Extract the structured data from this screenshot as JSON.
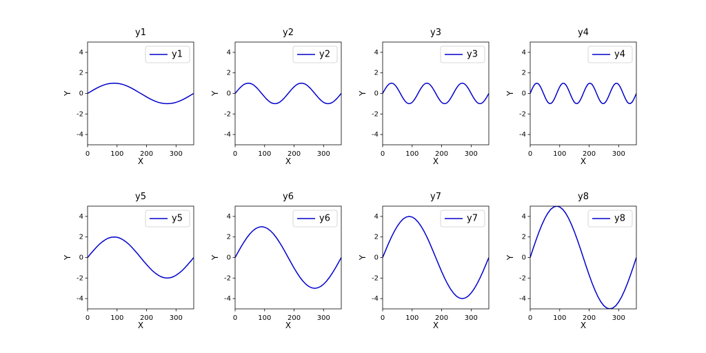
{
  "chart_data": [
    {
      "type": "line",
      "title": "y1",
      "xlabel": "X",
      "ylabel": "Y",
      "xlim": [
        0,
        360
      ],
      "ylim": [
        -5,
        5
      ],
      "xticks": [
        0,
        100,
        200,
        300
      ],
      "yticks": [
        -4,
        -2,
        0,
        2,
        4
      ],
      "legend": "upper right",
      "x": [
        0,
        10,
        20,
        30,
        40,
        50,
        60,
        70,
        80,
        90,
        100,
        110,
        120,
        130,
        140,
        150,
        160,
        170,
        180,
        190,
        200,
        210,
        220,
        230,
        240,
        250,
        260,
        270,
        280,
        290,
        300,
        310,
        320,
        330,
        340,
        350,
        360
      ],
      "series": [
        {
          "name": "y1",
          "color": "#0000cc",
          "values": [
            0,
            0.17,
            0.34,
            0.5,
            0.64,
            0.77,
            0.87,
            0.94,
            0.98,
            1,
            0.98,
            0.94,
            0.87,
            0.77,
            0.64,
            0.5,
            0.34,
            0.17,
            0,
            -0.17,
            -0.34,
            -0.5,
            -0.64,
            -0.77,
            -0.87,
            -0.94,
            -0.98,
            -1,
            -0.98,
            -0.94,
            -0.87,
            -0.77,
            -0.64,
            -0.5,
            -0.34,
            -0.17,
            0
          ]
        }
      ]
    },
    {
      "type": "line",
      "title": "y2",
      "xlabel": "X",
      "ylabel": "Y",
      "xlim": [
        0,
        360
      ],
      "ylim": [
        -5,
        5
      ],
      "xticks": [
        0,
        100,
        200,
        300
      ],
      "yticks": [
        -4,
        -2,
        0,
        2,
        4
      ],
      "legend": "upper right",
      "x": [
        0,
        5,
        10,
        15,
        20,
        25,
        30,
        35,
        40,
        45,
        50,
        55,
        60,
        65,
        70,
        75,
        80,
        85,
        90,
        95,
        100,
        105,
        110,
        115,
        120,
        125,
        130,
        135,
        140,
        145,
        150,
        155,
        160,
        165,
        170,
        175,
        180,
        185,
        190,
        195,
        200,
        205,
        210,
        215,
        220,
        225,
        230,
        235,
        240,
        245,
        250,
        255,
        260,
        265,
        270,
        275,
        280,
        285,
        290,
        295,
        300,
        305,
        310,
        315,
        320,
        325,
        330,
        335,
        340,
        345,
        350,
        355,
        360
      ],
      "series": [
        {
          "name": "y2",
          "color": "#0000cc",
          "values": [
            0,
            0.17,
            0.34,
            0.5,
            0.64,
            0.77,
            0.87,
            0.94,
            0.98,
            1,
            0.98,
            0.94,
            0.87,
            0.77,
            0.64,
            0.5,
            0.34,
            0.17,
            0,
            -0.17,
            -0.34,
            -0.5,
            -0.64,
            -0.77,
            -0.87,
            -0.94,
            -0.98,
            -1,
            -0.98,
            -0.94,
            -0.87,
            -0.77,
            -0.64,
            -0.5,
            -0.34,
            -0.17,
            0,
            0.17,
            0.34,
            0.5,
            0.64,
            0.77,
            0.87,
            0.94,
            0.98,
            1,
            0.98,
            0.94,
            0.87,
            0.77,
            0.64,
            0.5,
            0.34,
            0.17,
            0,
            -0.17,
            -0.34,
            -0.5,
            -0.64,
            -0.77,
            -0.87,
            -0.94,
            -0.98,
            -1,
            -0.98,
            -0.94,
            -0.87,
            -0.77,
            -0.64,
            -0.5,
            -0.34,
            -0.17,
            0
          ]
        }
      ]
    },
    {
      "type": "line",
      "title": "y3",
      "xlabel": "X",
      "ylabel": "Y",
      "xlim": [
        0,
        360
      ],
      "ylim": [
        -5,
        5
      ],
      "xticks": [
        0,
        100,
        200,
        300
      ],
      "yticks": [
        -4,
        -2,
        0,
        2,
        4
      ],
      "legend": "upper right",
      "x": [
        0,
        5,
        10,
        15,
        20,
        25,
        30,
        35,
        40,
        45,
        50,
        55,
        60,
        65,
        70,
        75,
        80,
        85,
        90,
        95,
        100,
        105,
        110,
        115,
        120,
        125,
        130,
        135,
        140,
        145,
        150,
        155,
        160,
        165,
        170,
        175,
        180,
        185,
        190,
        195,
        200,
        205,
        210,
        215,
        220,
        225,
        230,
        235,
        240,
        245,
        250,
        255,
        260,
        265,
        270,
        275,
        280,
        285,
        290,
        295,
        300,
        305,
        310,
        315,
        320,
        325,
        330,
        335,
        340,
        345,
        350,
        355,
        360
      ],
      "series": [
        {
          "name": "y3",
          "color": "#0000cc",
          "values": [
            0,
            0.26,
            0.5,
            0.71,
            0.87,
            0.97,
            1,
            0.97,
            0.87,
            0.71,
            0.5,
            0.26,
            0,
            -0.26,
            -0.5,
            -0.71,
            -0.87,
            -0.97,
            -1,
            -0.97,
            -0.87,
            -0.71,
            -0.5,
            -0.26,
            0,
            0.26,
            0.5,
            0.71,
            0.87,
            0.97,
            1,
            0.97,
            0.87,
            0.71,
            0.5,
            0.26,
            0,
            -0.26,
            -0.5,
            -0.71,
            -0.87,
            -0.97,
            -1,
            -0.97,
            -0.87,
            -0.71,
            -0.5,
            -0.26,
            0,
            0.26,
            0.5,
            0.71,
            0.87,
            0.97,
            1,
            0.97,
            0.87,
            0.71,
            0.5,
            0.26,
            0,
            -0.26,
            -0.5,
            -0.71,
            -0.87,
            -0.97,
            -1,
            -0.97,
            -0.87,
            -0.71,
            -0.5,
            -0.26,
            0
          ]
        }
      ]
    },
    {
      "type": "line",
      "title": "y4",
      "xlabel": "X",
      "ylabel": "Y",
      "xlim": [
        0,
        360
      ],
      "ylim": [
        -5,
        5
      ],
      "xticks": [
        0,
        100,
        200,
        300
      ],
      "yticks": [
        -4,
        -2,
        0,
        2,
        4
      ],
      "legend": "upper right",
      "x": [
        0,
        5,
        10,
        15,
        20,
        25,
        30,
        35,
        40,
        45,
        50,
        55,
        60,
        65,
        70,
        75,
        80,
        85,
        90,
        95,
        100,
        105,
        110,
        115,
        120,
        125,
        130,
        135,
        140,
        145,
        150,
        155,
        160,
        165,
        170,
        175,
        180,
        185,
        190,
        195,
        200,
        205,
        210,
        215,
        220,
        225,
        230,
        235,
        240,
        245,
        250,
        255,
        260,
        265,
        270,
        275,
        280,
        285,
        290,
        295,
        300,
        305,
        310,
        315,
        320,
        325,
        330,
        335,
        340,
        345,
        350,
        355,
        360
      ],
      "series": [
        {
          "name": "y4",
          "color": "#0000cc",
          "values": [
            0,
            0.34,
            0.64,
            0.87,
            0.98,
            0.98,
            0.87,
            0.64,
            0.34,
            0,
            -0.34,
            -0.64,
            -0.87,
            -0.98,
            -0.98,
            -0.87,
            -0.64,
            -0.34,
            0,
            0.34,
            0.64,
            0.87,
            0.98,
            0.98,
            0.87,
            0.64,
            0.34,
            0,
            -0.34,
            -0.64,
            -0.87,
            -0.98,
            -0.98,
            -0.87,
            -0.64,
            -0.34,
            0,
            0.34,
            0.64,
            0.87,
            0.98,
            0.98,
            0.87,
            0.64,
            0.34,
            0,
            -0.34,
            -0.64,
            -0.87,
            -0.98,
            -0.98,
            -0.87,
            -0.64,
            -0.34,
            0,
            0.34,
            0.64,
            0.87,
            0.98,
            0.98,
            0.87,
            0.64,
            0.34,
            0,
            -0.34,
            -0.64,
            -0.87,
            -0.98,
            -0.98,
            -0.87,
            -0.64,
            -0.34,
            0
          ]
        }
      ]
    },
    {
      "type": "line",
      "title": "y5",
      "xlabel": "X",
      "ylabel": "Y",
      "xlim": [
        0,
        360
      ],
      "ylim": [
        -5,
        5
      ],
      "xticks": [
        0,
        100,
        200,
        300
      ],
      "yticks": [
        -4,
        -2,
        0,
        2,
        4
      ],
      "legend": "upper right",
      "x": [
        0,
        10,
        20,
        30,
        40,
        50,
        60,
        70,
        80,
        90,
        100,
        110,
        120,
        130,
        140,
        150,
        160,
        170,
        180,
        190,
        200,
        210,
        220,
        230,
        240,
        250,
        260,
        270,
        280,
        290,
        300,
        310,
        320,
        330,
        340,
        350,
        360
      ],
      "series": [
        {
          "name": "y5",
          "color": "#0000cc",
          "values": [
            0,
            0.35,
            0.68,
            1,
            1.29,
            1.53,
            1.73,
            1.88,
            1.97,
            2,
            1.97,
            1.88,
            1.73,
            1.53,
            1.29,
            1,
            0.68,
            0.35,
            0,
            -0.35,
            -0.68,
            -1,
            -1.29,
            -1.53,
            -1.73,
            -1.88,
            -1.97,
            -2,
            -1.97,
            -1.88,
            -1.73,
            -1.53,
            -1.29,
            -1,
            -0.68,
            -0.35,
            0
          ]
        }
      ]
    },
    {
      "type": "line",
      "title": "y6",
      "xlabel": "X",
      "ylabel": "Y",
      "xlim": [
        0,
        360
      ],
      "ylim": [
        -5,
        5
      ],
      "xticks": [
        0,
        100,
        200,
        300
      ],
      "yticks": [
        -4,
        -2,
        0,
        2,
        4
      ],
      "legend": "upper right",
      "x": [
        0,
        10,
        20,
        30,
        40,
        50,
        60,
        70,
        80,
        90,
        100,
        110,
        120,
        130,
        140,
        150,
        160,
        170,
        180,
        190,
        200,
        210,
        220,
        230,
        240,
        250,
        260,
        270,
        280,
        290,
        300,
        310,
        320,
        330,
        340,
        350,
        360
      ],
      "series": [
        {
          "name": "y6",
          "color": "#0000cc",
          "values": [
            0,
            0.52,
            1.03,
            1.5,
            1.93,
            2.3,
            2.6,
            2.82,
            2.95,
            3,
            2.95,
            2.82,
            2.6,
            2.3,
            1.93,
            1.5,
            1.03,
            0.52,
            0,
            -0.52,
            -1.03,
            -1.5,
            -1.93,
            -2.3,
            -2.6,
            -2.82,
            -2.95,
            -3,
            -2.95,
            -2.82,
            -2.6,
            -2.3,
            -1.93,
            -1.5,
            -1.03,
            -0.52,
            0
          ]
        }
      ]
    },
    {
      "type": "line",
      "title": "y7",
      "xlabel": "X",
      "ylabel": "Y",
      "xlim": [
        0,
        360
      ],
      "ylim": [
        -5,
        5
      ],
      "xticks": [
        0,
        100,
        200,
        300
      ],
      "yticks": [
        -4,
        -2,
        0,
        2,
        4
      ],
      "legend": "upper right",
      "x": [
        0,
        10,
        20,
        30,
        40,
        50,
        60,
        70,
        80,
        90,
        100,
        110,
        120,
        130,
        140,
        150,
        160,
        170,
        180,
        190,
        200,
        210,
        220,
        230,
        240,
        250,
        260,
        270,
        280,
        290,
        300,
        310,
        320,
        330,
        340,
        350,
        360
      ],
      "series": [
        {
          "name": "y7",
          "color": "#0000cc",
          "values": [
            0,
            0.69,
            1.37,
            2,
            2.57,
            3.06,
            3.46,
            3.76,
            3.94,
            4,
            3.94,
            3.76,
            3.46,
            3.06,
            2.57,
            2,
            1.37,
            0.69,
            0,
            -0.69,
            -1.37,
            -2,
            -2.57,
            -3.06,
            -3.46,
            -3.76,
            -3.94,
            -4,
            -3.94,
            -3.76,
            -3.46,
            -3.06,
            -2.57,
            -2,
            -1.37,
            -0.69,
            0
          ]
        }
      ]
    },
    {
      "type": "line",
      "title": "y8",
      "xlabel": "X",
      "ylabel": "Y",
      "xlim": [
        0,
        360
      ],
      "ylim": [
        -5,
        5
      ],
      "xticks": [
        0,
        100,
        200,
        300
      ],
      "yticks": [
        -4,
        -2,
        0,
        2,
        4
      ],
      "legend": "upper right",
      "x": [
        0,
        10,
        20,
        30,
        40,
        50,
        60,
        70,
        80,
        90,
        100,
        110,
        120,
        130,
        140,
        150,
        160,
        170,
        180,
        190,
        200,
        210,
        220,
        230,
        240,
        250,
        260,
        270,
        280,
        290,
        300,
        310,
        320,
        330,
        340,
        350,
        360
      ],
      "series": [
        {
          "name": "y8",
          "color": "#0000cc",
          "values": [
            0,
            0.87,
            1.71,
            2.5,
            3.21,
            3.83,
            4.33,
            4.7,
            4.92,
            5,
            4.92,
            4.7,
            4.33,
            3.83,
            3.21,
            2.5,
            1.71,
            0.87,
            0,
            -0.87,
            -1.71,
            -2.5,
            -3.21,
            -3.83,
            -4.33,
            -4.7,
            -4.92,
            -5,
            -4.92,
            -4.7,
            -4.33,
            -3.83,
            -3.21,
            -2.5,
            -1.71,
            -0.87,
            0
          ]
        }
      ]
    }
  ]
}
